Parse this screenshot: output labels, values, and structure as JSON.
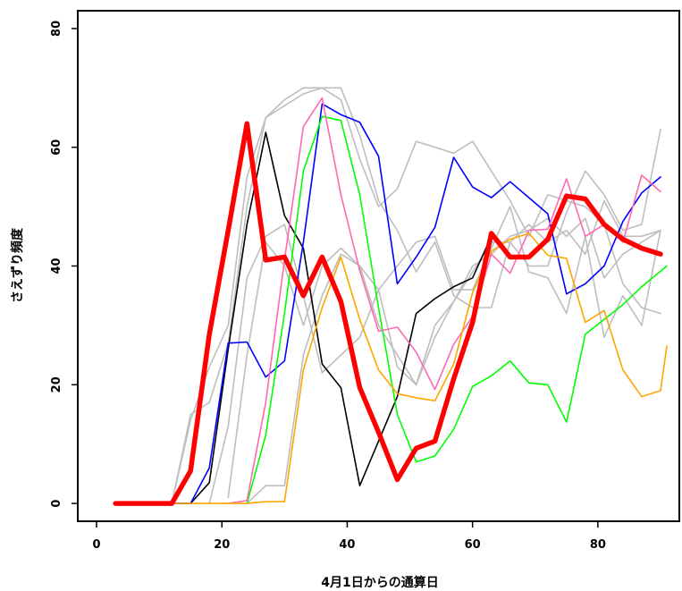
{
  "chart_data": {
    "type": "line",
    "xlabel": "4月1日からの通算日",
    "ylabel": "さえずり頻度",
    "xlim": [
      -3,
      93
    ],
    "ylim": [
      -3,
      83
    ],
    "xticks": [
      0,
      20,
      40,
      60,
      80
    ],
    "yticks": [
      0,
      20,
      40,
      60,
      80
    ],
    "grid": false,
    "legend": "none",
    "series": [
      {
        "color": "#bebebe",
        "width": 1.6,
        "x": [
          12,
          15,
          18,
          21,
          24,
          27,
          30,
          33,
          36,
          39,
          42,
          45,
          48,
          51,
          54,
          57,
          60,
          63,
          66,
          69,
          72,
          75,
          78,
          81,
          84,
          87,
          90
        ],
        "y": [
          0,
          15,
          17,
          27,
          50,
          65,
          68,
          70,
          70,
          70,
          62,
          51,
          46,
          39,
          44,
          35,
          33,
          33,
          44,
          40,
          40,
          49,
          56,
          52,
          46,
          47,
          63
        ]
      },
      {
        "color": "#bebebe",
        "width": 1.6,
        "x": [
          12,
          15,
          18,
          21,
          24,
          27,
          30,
          33,
          36,
          39,
          42,
          45,
          48,
          51,
          54,
          57,
          60,
          63,
          66,
          69,
          72,
          75,
          78,
          81,
          84,
          87,
          90
        ],
        "y": [
          0,
          14,
          23,
          30,
          55,
          65,
          67,
          69,
          70,
          68,
          58,
          50,
          53,
          61,
          60,
          59,
          61,
          56,
          51,
          45,
          52,
          51,
          50,
          47,
          37,
          33,
          32
        ]
      },
      {
        "color": "#bebebe",
        "width": 1.6,
        "x": [
          18,
          21,
          24,
          27,
          30,
          33,
          36,
          39,
          42,
          45,
          48,
          51,
          54,
          57,
          60,
          63,
          66,
          69,
          72,
          75,
          78,
          81,
          84,
          87,
          90
        ],
        "y": [
          0,
          13,
          38,
          45,
          47,
          35,
          22,
          25,
          28,
          36,
          40,
          44,
          45,
          36,
          36,
          43,
          50,
          39,
          38,
          32,
          45,
          28,
          35,
          30,
          46
        ]
      },
      {
        "color": "#bebebe",
        "width": 1.6,
        "x": [
          21,
          24,
          27,
          30,
          33,
          36,
          39,
          42,
          45,
          48,
          51,
          54,
          57,
          60,
          63,
          66,
          69,
          72,
          75,
          78,
          81,
          84,
          87,
          90
        ],
        "y": [
          1,
          25,
          44,
          40,
          30,
          40,
          43,
          40,
          30,
          25,
          20,
          28,
          34,
          40,
          42,
          45,
          46,
          48,
          45,
          48,
          38,
          42,
          44,
          46
        ]
      },
      {
        "color": "#bebebe",
        "width": 1.6,
        "x": [
          24,
          27,
          30,
          33,
          36,
          39,
          42,
          45,
          48,
          51,
          54,
          57,
          60,
          63,
          66,
          69,
          72,
          75,
          78,
          81,
          84,
          87,
          90
        ],
        "y": [
          0,
          3,
          3,
          25,
          35,
          42,
          40,
          36,
          23,
          20,
          30,
          34,
          39,
          44,
          44,
          47,
          44,
          46,
          42,
          51,
          45,
          45,
          46
        ]
      },
      {
        "color": "#000000",
        "width": 1.6,
        "x": [
          12,
          15,
          18,
          21,
          24,
          27,
          30,
          33,
          36,
          39,
          42,
          45,
          48,
          51,
          54,
          57,
          60,
          63
        ],
        "y": [
          0,
          0,
          3.5,
          26,
          47,
          62.5,
          48.5,
          43,
          23.5,
          19.5,
          3,
          10.5,
          18,
          32,
          34.5,
          36.5,
          38,
          45
        ]
      },
      {
        "color": "#0000ff",
        "width": 1.6,
        "x": [
          12,
          15,
          18,
          21,
          24,
          27,
          30,
          33,
          36,
          39,
          42,
          45,
          48,
          51,
          54,
          57,
          60,
          63,
          66,
          69,
          72,
          75,
          78,
          81,
          84,
          87,
          90
        ],
        "y": [
          0,
          0,
          6,
          27,
          27.2,
          21.3,
          24,
          44,
          67.3,
          65.5,
          64.2,
          58.5,
          37,
          41.5,
          46.5,
          58.3,
          53.3,
          51.5,
          54.2,
          51.5,
          48.8,
          35.3,
          37,
          40,
          47.5,
          52.3,
          55
        ]
      },
      {
        "color": "#00ff00",
        "width": 1.6,
        "x": [
          24,
          27,
          30,
          33,
          36,
          39,
          42,
          45,
          48,
          51,
          54,
          57,
          60,
          63,
          66,
          69,
          72,
          75,
          78,
          81,
          84,
          87,
          91
        ],
        "y": [
          0,
          11.5,
          32,
          56,
          65.2,
          64.5,
          52,
          33,
          15,
          7,
          8,
          12.5,
          19.7,
          21.5,
          24,
          20.3,
          20,
          13.7,
          28.5,
          31,
          33.5,
          36.5,
          40
        ]
      },
      {
        "color": "#ff69b4",
        "width": 1.6,
        "x": [
          21,
          24,
          27,
          30,
          33,
          36,
          39,
          42,
          45,
          48,
          51,
          54,
          57,
          60,
          63,
          66,
          69,
          72,
          75,
          78,
          81,
          84,
          87,
          90
        ],
        "y": [
          0,
          0.5,
          17,
          41,
          63.5,
          68.3,
          52,
          39.2,
          29,
          29.7,
          25.5,
          19.2,
          26.8,
          31.5,
          42,
          38.8,
          46,
          46.2,
          54.7,
          45,
          47,
          44,
          55.3,
          52.5
        ]
      },
      {
        "color": "#ffa500",
        "width": 1.6,
        "x": [
          3,
          6,
          9,
          12,
          15,
          18,
          21,
          24,
          27,
          30,
          33,
          36,
          39,
          42,
          45,
          48,
          51,
          54,
          57,
          60,
          63,
          66,
          69,
          72,
          75,
          78,
          81,
          84,
          87,
          90,
          91
        ],
        "y": [
          0,
          0,
          0,
          0,
          0,
          0,
          0,
          0,
          0.3,
          0.3,
          22.5,
          33,
          41.5,
          31,
          22.5,
          18.5,
          17.8,
          17.3,
          23.5,
          35.5,
          42.5,
          44.5,
          45.5,
          41.8,
          41.3,
          30.5,
          32.5,
          22.5,
          18,
          19,
          26.5
        ]
      },
      {
        "color": "#ff0000",
        "width": 5.5,
        "x": [
          3,
          6,
          9,
          12,
          15,
          18,
          21,
          24,
          27,
          30,
          33,
          36,
          39,
          42,
          45,
          48,
          51,
          54,
          57,
          60,
          63,
          66,
          69,
          72,
          75,
          78,
          81,
          84,
          87,
          90
        ],
        "y": [
          0,
          0,
          0,
          0,
          5.5,
          28.5,
          46,
          64,
          41,
          41.5,
          35,
          41.5,
          34,
          19.5,
          12,
          4,
          9.3,
          10.5,
          21,
          30.5,
          45.5,
          41.5,
          41.5,
          44.5,
          51.8,
          51.3,
          47,
          44.5,
          43,
          42
        ]
      }
    ]
  }
}
